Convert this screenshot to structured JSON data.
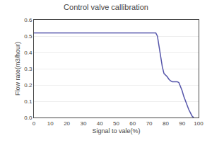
{
  "chart_data": {
    "type": "line",
    "title": "Control valve callibration",
    "xlabel": "Signal to vale(%)",
    "ylabel": "Flow rate(m3/hour)",
    "x": [
      0,
      74,
      75,
      76,
      77,
      78,
      79,
      80,
      81,
      82,
      83,
      84,
      85,
      86,
      87,
      88,
      89,
      90,
      91,
      92,
      93,
      94,
      95,
      96,
      97
    ],
    "values": [
      0.52,
      0.52,
      0.5,
      0.44,
      0.37,
      0.31,
      0.27,
      0.26,
      0.25,
      0.235,
      0.225,
      0.22,
      0.22,
      0.22,
      0.22,
      0.215,
      0.19,
      0.165,
      0.13,
      0.1,
      0.075,
      0.05,
      0.03,
      0.01,
      0.0
    ],
    "color": "#5555aa",
    "xlim": [
      0,
      100
    ],
    "ylim": [
      0,
      0.6
    ],
    "xticks": [
      0,
      10,
      20,
      30,
      40,
      50,
      60,
      70,
      80,
      90,
      100
    ],
    "yticks": [
      {
        "value": 0,
        "label": "0.0"
      },
      0.1,
      0.2,
      0.3,
      0.4,
      0.5,
      0.6
    ],
    "grid": "y"
  }
}
